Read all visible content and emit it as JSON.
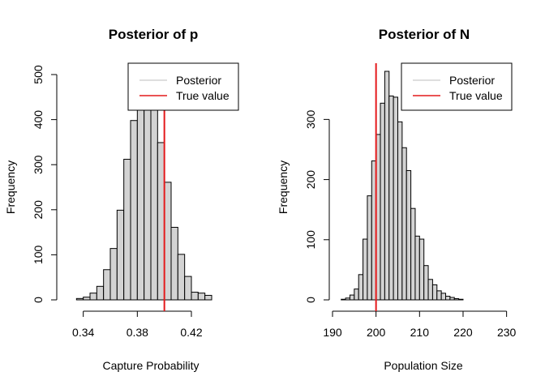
{
  "colors": {
    "bar_fill": "#d3d3d3",
    "bar_stroke": "#000000",
    "true_line": "#e41a1c",
    "posterior_line": "#bebebe"
  },
  "chart_data": [
    {
      "type": "bar",
      "title": "Posterior of p",
      "xlabel": "Capture Probability",
      "ylabel": "Frequency",
      "xlim": [
        0.33,
        0.45
      ],
      "ylim": [
        0,
        500
      ],
      "xticks": [
        0.34,
        0.38,
        0.42
      ],
      "xtick_labels": [
        "0.34",
        "0.38",
        "0.42"
      ],
      "yticks": [
        0,
        100,
        200,
        300,
        400,
        500
      ],
      "ytick_labels": [
        "0",
        "100",
        "200",
        "300",
        "400",
        "500"
      ],
      "bin_start": 0.335,
      "bin_width": 0.005,
      "values": [
        3,
        6,
        15,
        30,
        67,
        114,
        199,
        312,
        398,
        462,
        471,
        450,
        349,
        261,
        161,
        101,
        52,
        17,
        15,
        10
      ],
      "true_value": 0.4,
      "legend": {
        "position": "top-right",
        "entries": [
          "Posterior",
          "True value"
        ]
      }
    },
    {
      "type": "bar",
      "title": "Posterior of N",
      "xlabel": "Population Size",
      "ylabel": "Frequency",
      "xlim": [
        190,
        231
      ],
      "ylim": [
        0,
        380
      ],
      "xticks": [
        190,
        200,
        210,
        220,
        230
      ],
      "xtick_labels": [
        "190",
        "200",
        "210",
        "220",
        "230"
      ],
      "yticks": [
        0,
        100,
        200,
        300
      ],
      "ytick_labels": [
        "0",
        "100",
        "200",
        "300"
      ],
      "bin_start": 192,
      "bin_width": 1,
      "values": [
        1,
        3,
        8,
        18,
        42,
        101,
        173,
        231,
        275,
        327,
        380,
        339,
        337,
        296,
        253,
        215,
        152,
        106,
        101,
        57,
        34,
        25,
        15,
        11,
        6,
        4,
        2,
        1
      ],
      "true_value": 200,
      "legend": {
        "position": "top-right",
        "entries": [
          "Posterior",
          "True value"
        ]
      }
    }
  ]
}
